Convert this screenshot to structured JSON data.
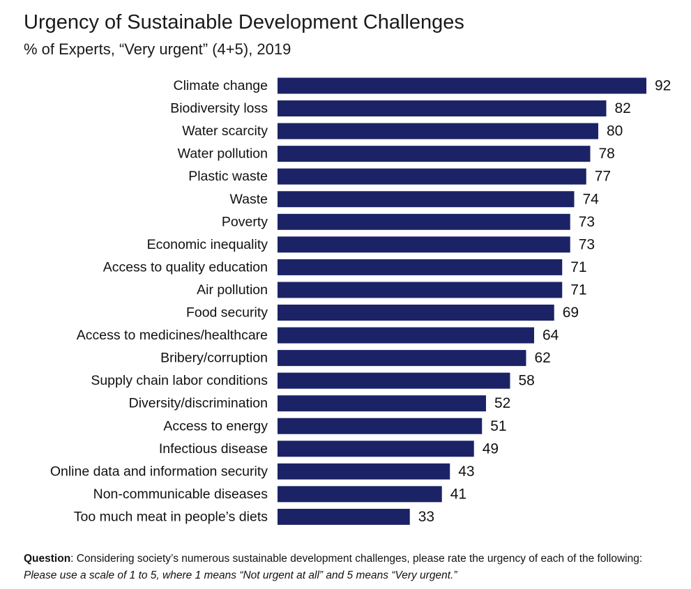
{
  "title": "Urgency of Sustainable Development Challenges",
  "subtitle": "% of Experts, “Very urgent” (4+5), 2019",
  "colors": {
    "bar": "#1b2366",
    "text": "#111111"
  },
  "chart_data": {
    "type": "bar",
    "orientation": "horizontal",
    "title": "Urgency of Sustainable Development Challenges",
    "subtitle": "% of Experts, “Very urgent” (4+5), 2019",
    "categories": [
      "Climate change",
      "Biodiversity loss",
      "Water scarcity",
      "Water pollution",
      "Plastic waste",
      "Waste",
      "Poverty",
      "Economic inequality",
      "Access to quality education",
      "Air pollution",
      "Food security",
      "Access to medicines/healthcare",
      "Bribery/corruption",
      "Supply chain labor conditions",
      "Diversity/discrimination",
      "Access to energy",
      "Infectious disease",
      "Online data and information security",
      "Non-communicable diseases",
      "Too much meat in people’s diets"
    ],
    "values": [
      92,
      82,
      80,
      78,
      77,
      74,
      73,
      73,
      71,
      71,
      69,
      64,
      62,
      58,
      52,
      51,
      49,
      43,
      41,
      33
    ],
    "xlim": [
      0,
      92
    ],
    "grid": false,
    "legend": "none",
    "data_labels": true
  },
  "footnote": {
    "label": "Question",
    "colon": ":",
    "text": " Considering society’s numerous sustainable development challenges, please rate the urgency of each of the following: ",
    "italic": "Please use a scale of 1 to 5, where 1 means “Not urgent at all” and 5 means “Very urgent.”"
  }
}
